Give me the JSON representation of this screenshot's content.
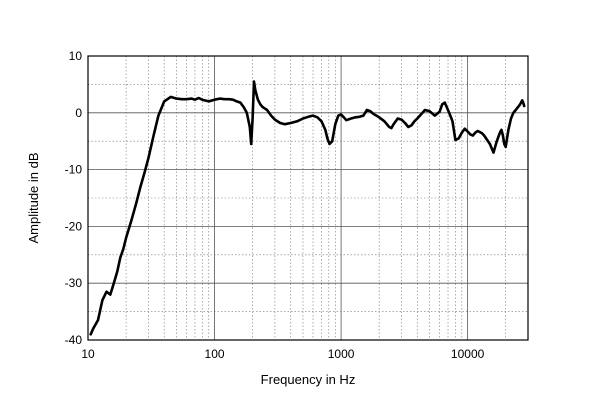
{
  "chart_data": {
    "type": "line",
    "title": "",
    "xlabel": "Frequency in Hz",
    "ylabel": "Amplitude in dB",
    "xscale": "log",
    "xlim": [
      10,
      30000
    ],
    "ylim": [
      -40,
      10
    ],
    "grid": true,
    "xticks": [
      10,
      100,
      1000,
      10000
    ],
    "xtick_labels": [
      "10",
      "100",
      "1000",
      "10000"
    ],
    "yticks": [
      10,
      0,
      -10,
      -20,
      -30,
      -40
    ],
    "ytick_labels": [
      "10",
      "0",
      "-10",
      "-20",
      "-30",
      "-40"
    ],
    "line_color": "#000000",
    "series": [
      {
        "x": [
          10.5,
          11,
          12,
          13,
          14,
          15,
          16,
          17,
          18,
          19,
          20,
          22,
          24,
          26,
          28,
          30,
          33,
          36,
          40,
          45,
          50,
          55,
          60,
          66,
          70,
          75,
          80,
          90,
          100,
          110,
          120,
          130,
          140,
          150,
          160,
          170,
          180,
          190,
          195,
          200,
          205,
          210,
          220,
          230,
          240,
          260,
          280,
          300,
          330,
          360,
          400,
          450,
          500,
          550,
          600,
          650,
          700,
          750,
          780,
          810,
          850,
          900,
          950,
          1000,
          1050,
          1100,
          1200,
          1300,
          1400,
          1500,
          1600,
          1700,
          1800,
          1900,
          2000,
          2200,
          2400,
          2500,
          2600,
          2800,
          3000,
          3200,
          3400,
          3600,
          3800,
          4000,
          4200,
          4400,
          4600,
          5000,
          5500,
          6000,
          6300,
          6600,
          7000,
          7300,
          7600,
          8000,
          8500,
          9000,
          9500,
          10000,
          10500,
          11000,
          11500,
          12000,
          12500,
          13000,
          13500,
          14000,
          14500,
          15000,
          16000,
          17000,
          18000,
          18500,
          19000,
          19500,
          20000,
          21000,
          22000,
          23000,
          24000,
          25000,
          26000,
          27000,
          27500,
          28000
        ],
        "y": [
          -39,
          -38,
          -36.5,
          -33,
          -31.5,
          -32,
          -30,
          -28,
          -25.5,
          -24,
          -22,
          -19,
          -16,
          -13,
          -10.5,
          -8,
          -4,
          -0.5,
          2,
          2.8,
          2.5,
          2.4,
          2.4,
          2.5,
          2.3,
          2.6,
          2.3,
          2.0,
          2.3,
          2.5,
          2.4,
          2.4,
          2.3,
          2.0,
          1.8,
          1.0,
          0,
          -2.5,
          -5.5,
          -1,
          5.5,
          4,
          2.3,
          1.5,
          1.0,
          0.5,
          -0.5,
          -1.2,
          -1.8,
          -2.0,
          -1.8,
          -1.5,
          -1.0,
          -0.7,
          -0.5,
          -0.8,
          -1.5,
          -3.0,
          -4.5,
          -5.5,
          -5.0,
          -2.0,
          -0.5,
          -0.3,
          -0.8,
          -1.3,
          -1.0,
          -0.8,
          -0.7,
          -0.5,
          0.5,
          0.3,
          -0.2,
          -0.5,
          -0.8,
          -1.5,
          -2.5,
          -2.7,
          -2.0,
          -1.0,
          -1.2,
          -1.8,
          -2.5,
          -2.2,
          -1.5,
          -1.0,
          -0.5,
          0,
          0.5,
          0.3,
          -0.5,
          0.2,
          1.5,
          1.8,
          0.5,
          -0.5,
          -1.5,
          -4.8,
          -4.5,
          -3.5,
          -2.8,
          -3.3,
          -3.8,
          -4.0,
          -3.5,
          -3.2,
          -3.4,
          -3.6,
          -4.0,
          -4.5,
          -5.0,
          -5.5,
          -7.0,
          -5.0,
          -3.5,
          -3.0,
          -4.0,
          -5.5,
          -6.0,
          -3.0,
          -1.0,
          0,
          0.5,
          1.0,
          1.5,
          2.2,
          1.8,
          1.2
        ]
      }
    ]
  }
}
